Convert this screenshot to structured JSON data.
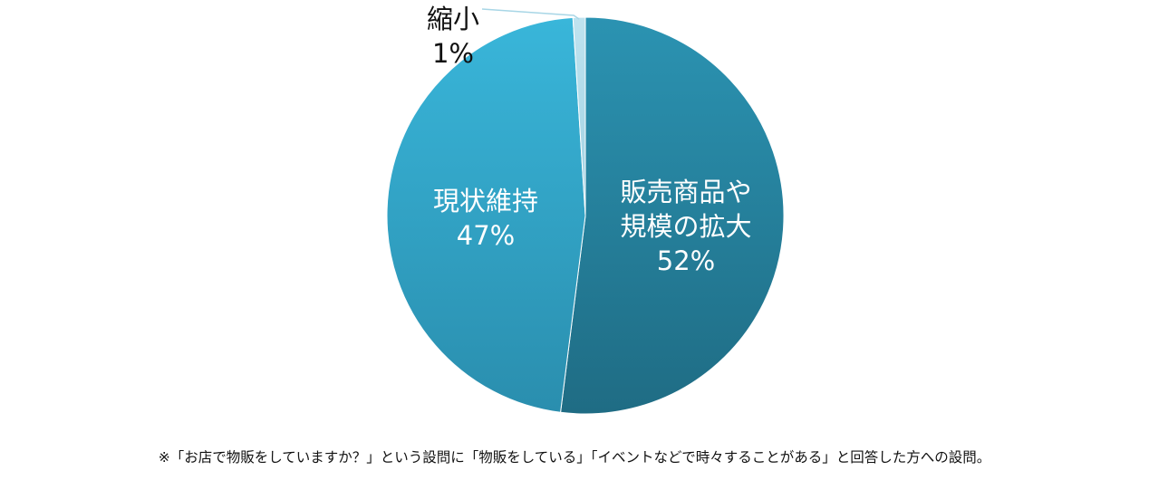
{
  "chart_data": {
    "type": "pie",
    "slices": [
      {
        "label_lines": [
          "販売商品や",
          "規模の拡大"
        ],
        "value": 52,
        "value_label": "52%",
        "color": "#2a85a0"
      },
      {
        "label_lines": [
          "現状維持"
        ],
        "value": 47,
        "value_label": "47%",
        "color": "#34aace"
      },
      {
        "label_lines": [
          "縮小"
        ],
        "value": 1,
        "value_label": "1%",
        "color": "#a8d6e6"
      }
    ],
    "start": "12 o'clock",
    "direction": "clockwise",
    "legend": "none",
    "label_placement": "inside; outside with leader line for small slice"
  },
  "footnote": "※「お店で物販をしていますか？」という設問に「物販をしている」「イベントなどで時々することがある」と回答した方への設問。"
}
